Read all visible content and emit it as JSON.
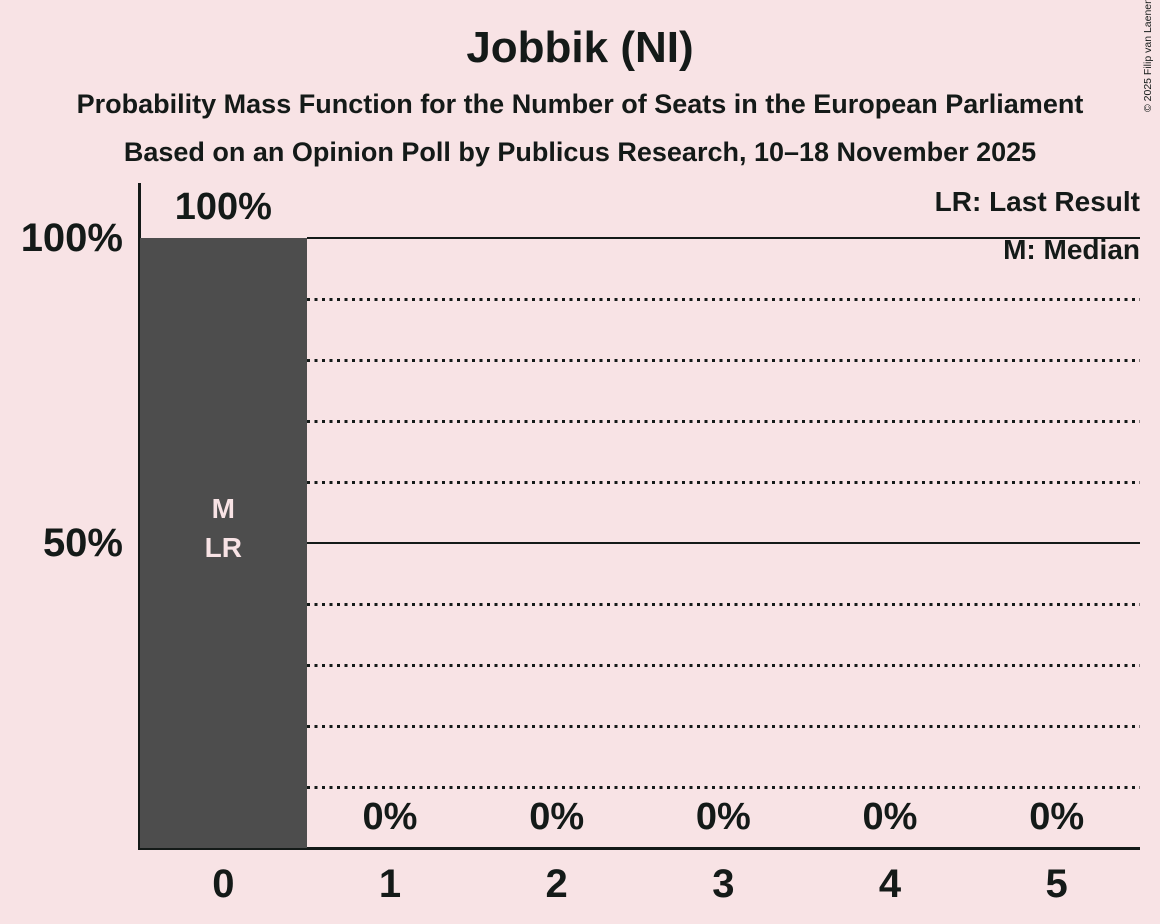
{
  "title": "Jobbik (NI)",
  "subtitle": "Probability Mass Function for the Number of Seats in the European Parliament",
  "source_line": "Based on an Opinion Poll by Publicus Research, 10–18 November 2025",
  "copyright": "© 2025 Filip van Laenen",
  "legend": {
    "last_result": "LR: Last Result",
    "median": "M: Median"
  },
  "colors": {
    "background": "#f8e3e5",
    "bar": "#4d4d4d",
    "ink": "#141a18",
    "bar_annotation": "#f8e3e5"
  },
  "y_axis": {
    "labels": [
      "100%",
      "50%"
    ],
    "positions_percent": [
      100,
      50
    ]
  },
  "chart_data": {
    "type": "bar",
    "title": "Jobbik (NI)",
    "categories": [
      "0",
      "1",
      "2",
      "3",
      "4",
      "5"
    ],
    "values": [
      100,
      0,
      0,
      0,
      0,
      0
    ],
    "value_labels": [
      "100%",
      "0%",
      "0%",
      "0%",
      "0%",
      "0%"
    ],
    "ylim": [
      0,
      100
    ],
    "ytick_percent": [
      50,
      100
    ],
    "gridlines_dotted_percent": [
      10,
      20,
      30,
      40,
      60,
      70,
      80,
      90
    ],
    "gridlines_solid_percent": [
      50,
      100
    ],
    "annotations": [
      {
        "category": "0",
        "lines": [
          "M",
          "LR"
        ]
      }
    ],
    "legend_position": "top-right",
    "median_seats": 0,
    "last_result_seats": 0
  }
}
